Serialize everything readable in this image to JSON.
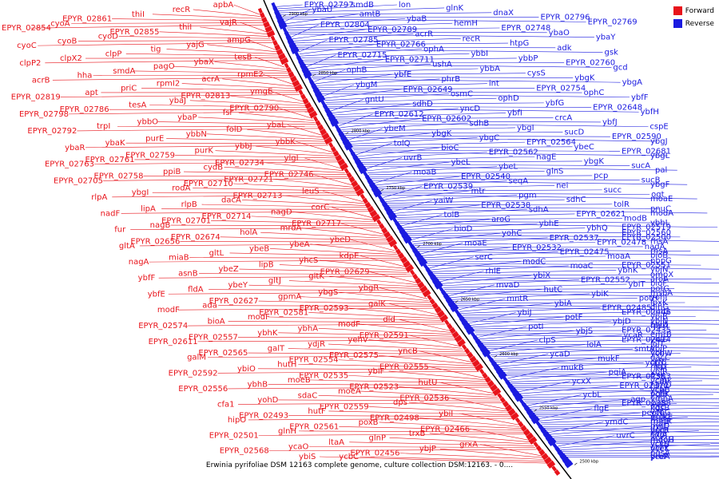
{
  "legend": {
    "forward_label": "Forward",
    "reverse_label": "Reverse",
    "forward_color": "#e8141b",
    "reverse_color": "#1a1ae0"
  },
  "caption": "Erwinia pyrifoliae DSM 12163 complete genome, culture collection DSM:12163. - 0....",
  "ticks": [
    "2900 kbp",
    "2850 kbp",
    "2800 kbp",
    "2750 kbp",
    "2700 kbp",
    "2650 kbp",
    "2600 kbp",
    "2550 kbp",
    "2500 kbp"
  ],
  "forward_genes": [
    {
      "name": "apbA"
    },
    {
      "name": "recR"
    },
    {
      "name": "thiI"
    },
    {
      "name": "EPYR_02861"
    },
    {
      "name": "cyoA"
    },
    {
      "name": "EPYR_02854"
    },
    {
      "name": "vajR"
    },
    {
      "name": "thiI"
    },
    {
      "name": "EPYR_02855"
    },
    {
      "name": "cyoD"
    },
    {
      "name": "cyoB"
    },
    {
      "name": "cyoC"
    },
    {
      "name": "ampG"
    },
    {
      "name": "yajG"
    },
    {
      "name": "tig"
    },
    {
      "name": "clpP"
    },
    {
      "name": "clpX2"
    },
    {
      "name": "clpP2"
    },
    {
      "name": "tesB"
    },
    {
      "name": "ybaX"
    },
    {
      "name": "pagO"
    },
    {
      "name": "smdA"
    },
    {
      "name": "hha"
    },
    {
      "name": "acrB"
    },
    {
      "name": "rpmE2"
    },
    {
      "name": "acrA"
    },
    {
      "name": "rpmI2"
    },
    {
      "name": "priC"
    },
    {
      "name": "apt"
    },
    {
      "name": "EPYR_02819"
    },
    {
      "name": "ymgE"
    },
    {
      "name": "EPYR_02813"
    },
    {
      "name": "ybaJ"
    },
    {
      "name": "tesA"
    },
    {
      "name": "EPYR_02786"
    },
    {
      "name": "EPYR_02798"
    },
    {
      "name": "EPYR_02790"
    },
    {
      "name": "fsr"
    },
    {
      "name": "ybaP"
    },
    {
      "name": "ybbO"
    },
    {
      "name": "trpI"
    },
    {
      "name": "EPYR_02792"
    },
    {
      "name": "ybaL"
    },
    {
      "name": "folD"
    },
    {
      "name": "ybbN"
    },
    {
      "name": "purE"
    },
    {
      "name": "ybaK"
    },
    {
      "name": "ybaR"
    },
    {
      "name": "ybbK"
    },
    {
      "name": "ybbJ"
    },
    {
      "name": "purK"
    },
    {
      "name": "EPYR_02759"
    },
    {
      "name": "EPYR_02761"
    },
    {
      "name": "EPYR_02763"
    },
    {
      "name": "ylgI"
    },
    {
      "name": "EPYR_02734"
    },
    {
      "name": "cydB"
    },
    {
      "name": "ppiB"
    },
    {
      "name": "EPYR_02758"
    },
    {
      "name": "EPYR_02705"
    },
    {
      "name": "EPYR_02746"
    },
    {
      "name": "EPYR_02721"
    },
    {
      "name": "EPYR_02710"
    },
    {
      "name": "rodA"
    },
    {
      "name": "ybgI"
    },
    {
      "name": "rlpA"
    },
    {
      "name": "leuS"
    },
    {
      "name": "EPYR_02713"
    },
    {
      "name": "dacA"
    },
    {
      "name": "rlpB"
    },
    {
      "name": "lipA"
    },
    {
      "name": "nadF"
    },
    {
      "name": "corC"
    },
    {
      "name": "nagD"
    },
    {
      "name": "EPYR_02714"
    },
    {
      "name": "EPYR_02701"
    },
    {
      "name": "nagB"
    },
    {
      "name": "fur"
    },
    {
      "name": "EPYR_02717"
    },
    {
      "name": "mrdA"
    },
    {
      "name": "holA"
    },
    {
      "name": "EPYR_02674"
    },
    {
      "name": "EPYR_02656"
    },
    {
      "name": "gltA"
    },
    {
      "name": "ybeD"
    },
    {
      "name": "ybeA"
    },
    {
      "name": "ybeB"
    },
    {
      "name": "gltL"
    },
    {
      "name": "miaB"
    },
    {
      "name": "nagA"
    },
    {
      "name": "kdpE"
    },
    {
      "name": "yhcS"
    },
    {
      "name": "lipB"
    },
    {
      "name": "ybeZ"
    },
    {
      "name": "asnB"
    },
    {
      "name": "ybfF"
    },
    {
      "name": "EPYR_02629"
    },
    {
      "name": "gltK"
    },
    {
      "name": "gltJ"
    },
    {
      "name": "ybeY"
    },
    {
      "name": "fldA"
    },
    {
      "name": "ybfE"
    },
    {
      "name": "ybgR"
    },
    {
      "name": "ybgS"
    },
    {
      "name": "gpmA"
    },
    {
      "name": "EPYR_02627"
    },
    {
      "name": "ada"
    },
    {
      "name": "modF"
    },
    {
      "name": "galK"
    },
    {
      "name": "EPYR_02593"
    },
    {
      "name": "EPYR_02581"
    },
    {
      "name": "modF"
    },
    {
      "name": "bioA"
    },
    {
      "name": "EPYR_02574"
    },
    {
      "name": "dld"
    },
    {
      "name": "modF"
    },
    {
      "name": "ybhA"
    },
    {
      "name": "ybhK"
    },
    {
      "name": "EPYR_02557"
    },
    {
      "name": "EPYR_02611"
    },
    {
      "name": "EPYR_02591"
    },
    {
      "name": "yehV"
    },
    {
      "name": "ydjR"
    },
    {
      "name": "galT"
    },
    {
      "name": "EPYR_02565"
    },
    {
      "name": "galM"
    },
    {
      "name": "yncB"
    },
    {
      "name": "EPYR_02575"
    },
    {
      "name": "EPYR_02554"
    },
    {
      "name": "hutH"
    },
    {
      "name": "ybiO"
    },
    {
      "name": "EPYR_02592"
    },
    {
      "name": "EPYR_02555"
    },
    {
      "name": "ybiF"
    },
    {
      "name": "EPYR_02535"
    },
    {
      "name": "moeB"
    },
    {
      "name": "ybhB"
    },
    {
      "name": "EPYR_02556"
    },
    {
      "name": "hutU"
    },
    {
      "name": "EPYR_02523"
    },
    {
      "name": "moeA"
    },
    {
      "name": "sdaC"
    },
    {
      "name": "yohD"
    },
    {
      "name": "cfa1"
    },
    {
      "name": "EPYR_02536"
    },
    {
      "name": "dps"
    },
    {
      "name": "EPYR_02559"
    },
    {
      "name": "hutF"
    },
    {
      "name": "EPYR_02493"
    },
    {
      "name": "hipO"
    },
    {
      "name": "ybiI"
    },
    {
      "name": "EPYR_02498"
    },
    {
      "name": "poxB"
    },
    {
      "name": "EPYR_02561"
    },
    {
      "name": "glnH"
    },
    {
      "name": "EPYR_02501"
    },
    {
      "name": "EPYR_02466"
    },
    {
      "name": "trxB"
    },
    {
      "name": "glnP"
    },
    {
      "name": "ltaA"
    },
    {
      "name": "ycaO"
    },
    {
      "name": "EPYR_02568"
    },
    {
      "name": "grxA"
    },
    {
      "name": "ybjP"
    },
    {
      "name": "EPYR_02456"
    },
    {
      "name": "ycbC"
    },
    {
      "name": "ybiS"
    }
  ],
  "reverse_genes": [
    {
      "name": "EPYR_02797"
    },
    {
      "name": "smdB"
    },
    {
      "name": "lon"
    },
    {
      "name": "glnK"
    },
    {
      "name": "dnaX"
    },
    {
      "name": "EPYR_02796"
    },
    {
      "name": "EPYR_02769"
    },
    {
      "name": "ybaU"
    },
    {
      "name": "amtB"
    },
    {
      "name": "ybaB"
    },
    {
      "name": "hemH"
    },
    {
      "name": "EPYR_02748"
    },
    {
      "name": "ybaO"
    },
    {
      "name": "ybaY"
    },
    {
      "name": "EPYR_02804"
    },
    {
      "name": "EPYR_02789"
    },
    {
      "name": "acrR"
    },
    {
      "name": "recR"
    },
    {
      "name": "htpG"
    },
    {
      "name": "adk"
    },
    {
      "name": "gsk"
    },
    {
      "name": "EPYR_02785"
    },
    {
      "name": "EPYR_02766"
    },
    {
      "name": "ophA"
    },
    {
      "name": "ybbI"
    },
    {
      "name": "ybbP"
    },
    {
      "name": "EPYR_02760"
    },
    {
      "name": "gcd"
    },
    {
      "name": "EPYR_02715"
    },
    {
      "name": "EPYR_02711"
    },
    {
      "name": "ushA"
    },
    {
      "name": "ybbA"
    },
    {
      "name": "cysS"
    },
    {
      "name": "ybgK"
    },
    {
      "name": "ybgA"
    },
    {
      "name": "ophB"
    },
    {
      "name": "ybfE"
    },
    {
      "name": "phrB"
    },
    {
      "name": "int"
    },
    {
      "name": "EPYR_02754"
    },
    {
      "name": "ophC"
    },
    {
      "name": "ybfF"
    },
    {
      "name": "ybgM"
    },
    {
      "name": "EPYR_02649"
    },
    {
      "name": "osmC"
    },
    {
      "name": "ophD"
    },
    {
      "name": "ybfG"
    },
    {
      "name": "EPYR_02648"
    },
    {
      "name": "ybfH"
    },
    {
      "name": "gntU"
    },
    {
      "name": "sdhD"
    },
    {
      "name": "yncD"
    },
    {
      "name": "ybfI"
    },
    {
      "name": "crcA"
    },
    {
      "name": "ybfJ"
    },
    {
      "name": "cspE"
    },
    {
      "name": "EPYR_02612"
    },
    {
      "name": "EPYR_02602"
    },
    {
      "name": "sdhB"
    },
    {
      "name": "ybgI"
    },
    {
      "name": "sucD"
    },
    {
      "name": "EPYR_02590"
    },
    {
      "name": "ybgJ"
    },
    {
      "name": "ybeM"
    },
    {
      "name": "ybgK"
    },
    {
      "name": "ybgC"
    },
    {
      "name": "EPYR_02564"
    },
    {
      "name": "ybeC"
    },
    {
      "name": "EPYR_02681"
    },
    {
      "name": "ybgL"
    },
    {
      "name": "tolQ"
    },
    {
      "name": "bioC"
    },
    {
      "name": "EPYR_02562"
    },
    {
      "name": "nagE"
    },
    {
      "name": "ybgK"
    },
    {
      "name": "sucA"
    },
    {
      "name": "pal"
    },
    {
      "name": "uvrB"
    },
    {
      "name": "ybeL"
    },
    {
      "name": "ybeL"
    },
    {
      "name": "glnS"
    },
    {
      "name": "pcp"
    },
    {
      "name": "sucB"
    },
    {
      "name": "ybgF"
    },
    {
      "name": "moaB"
    },
    {
      "name": "EPYR_02540"
    },
    {
      "name": "seqA"
    },
    {
      "name": "nei"
    },
    {
      "name": "succ"
    },
    {
      "name": "ogt"
    },
    {
      "name": "moaE"
    },
    {
      "name": "EPYR_02539"
    },
    {
      "name": "mtr"
    },
    {
      "name": "pgm"
    },
    {
      "name": "sdhC"
    },
    {
      "name": "tolR"
    },
    {
      "name": "pnuC"
    },
    {
      "name": "modA"
    },
    {
      "name": "yaiW"
    },
    {
      "name": "EPYR_02538"
    },
    {
      "name": "sdhA"
    },
    {
      "name": "EPYR_02621"
    },
    {
      "name": "modB"
    },
    {
      "name": "ybhL"
    },
    {
      "name": "EPYR_02519"
    },
    {
      "name": "tolB"
    },
    {
      "name": "aroG"
    },
    {
      "name": "ybhE"
    },
    {
      "name": "ybhQ"
    },
    {
      "name": "EPYR_02560"
    },
    {
      "name": "EPYR_02500"
    },
    {
      "name": "rhsA"
    },
    {
      "name": "bioD"
    },
    {
      "name": "yohC"
    },
    {
      "name": "EPYR_02537"
    },
    {
      "name": "EPYR_02478"
    },
    {
      "name": "nadA"
    },
    {
      "name": "rhsA"
    },
    {
      "name": "bioB"
    },
    {
      "name": "moaE"
    },
    {
      "name": "EPYR_02532"
    },
    {
      "name": "EPYR_02475"
    },
    {
      "name": "moaA"
    },
    {
      "name": "pbpG"
    },
    {
      "name": "EPYR_02551"
    },
    {
      "name": "ybjN"
    },
    {
      "name": "serC"
    },
    {
      "name": "modC"
    },
    {
      "name": "moaC"
    },
    {
      "name": "ybhK"
    },
    {
      "name": "ompX"
    },
    {
      "name": "aroA"
    },
    {
      "name": "bioF"
    },
    {
      "name": "rhlE"
    },
    {
      "name": "ybiX"
    },
    {
      "name": "EPYR_02552"
    },
    {
      "name": "ybiT"
    },
    {
      "name": "potG"
    },
    {
      "name": "msbA"
    },
    {
      "name": "yohI"
    },
    {
      "name": "mvaD"
    },
    {
      "name": "hutC"
    },
    {
      "name": "ybiK"
    },
    {
      "name": "potH"
    },
    {
      "name": "lpxK"
    },
    {
      "name": "dinG"
    },
    {
      "name": "hutG"
    },
    {
      "name": "mntR"
    },
    {
      "name": "ybiA"
    },
    {
      "name": "EPYR_02485"
    },
    {
      "name": "EPYR_02446"
    },
    {
      "name": "ybiB"
    },
    {
      "name": "ybiN"
    },
    {
      "name": "hlyD"
    },
    {
      "name": "ybiJ"
    },
    {
      "name": "potF"
    },
    {
      "name": "ybjD"
    },
    {
      "name": "rpsA"
    },
    {
      "name": "EPYR_02435"
    },
    {
      "name": "emrB"
    },
    {
      "name": "ybiC"
    },
    {
      "name": "potI"
    },
    {
      "name": "ybjS"
    },
    {
      "name": "ycaR"
    },
    {
      "name": "EPYR_02424"
    },
    {
      "name": "lolT"
    },
    {
      "name": "ybiP"
    },
    {
      "name": "ybiI"
    },
    {
      "name": "clpS"
    },
    {
      "name": "lolA"
    },
    {
      "name": "smtA"
    },
    {
      "name": "ycbW"
    },
    {
      "name": "dacC"
    },
    {
      "name": "orfB"
    },
    {
      "name": "lrp"
    },
    {
      "name": "ycaD"
    },
    {
      "name": "mukF"
    },
    {
      "name": "ycbY"
    },
    {
      "name": "rhaT"
    },
    {
      "name": "ybjR"
    },
    {
      "name": "ftsK"
    },
    {
      "name": "cmk"
    },
    {
      "name": "mukB"
    },
    {
      "name": "pqiA"
    },
    {
      "name": "EPYR_02383"
    },
    {
      "name": "ycaJ"
    },
    {
      "name": "himD"
    },
    {
      "name": "ycbB"
    },
    {
      "name": "pqiB"
    },
    {
      "name": "ycxX"
    },
    {
      "name": "EPYR_02372"
    },
    {
      "name": "ycaI"
    },
    {
      "name": "ycbK"
    },
    {
      "name": "ymbA"
    },
    {
      "name": "EPYR_02388"
    },
    {
      "name": "flgC"
    },
    {
      "name": "ycbL"
    },
    {
      "name": "agp"
    },
    {
      "name": "seiS"
    },
    {
      "name": "kdsB"
    },
    {
      "name": "ycbG"
    },
    {
      "name": "ycdC"
    },
    {
      "name": "marR"
    },
    {
      "name": "flgE"
    },
    {
      "name": "pepN"
    },
    {
      "name": "mukE"
    },
    {
      "name": "rmrB"
    },
    {
      "name": "pyrD"
    },
    {
      "name": "yccR"
    },
    {
      "name": "sdiA"
    },
    {
      "name": "ymdC"
    },
    {
      "name": "rmf"
    },
    {
      "name": "helD"
    },
    {
      "name": "expI"
    },
    {
      "name": "mdoG"
    },
    {
      "name": "yccU"
    },
    {
      "name": "uvrY"
    },
    {
      "name": "uvrC"
    },
    {
      "name": "mdoH"
    },
    {
      "name": "ycxS"
    },
    {
      "name": "yceK"
    },
    {
      "name": "pgsA"
    },
    {
      "name": "yceA"
    },
    {
      "name": "proP"
    }
  ]
}
